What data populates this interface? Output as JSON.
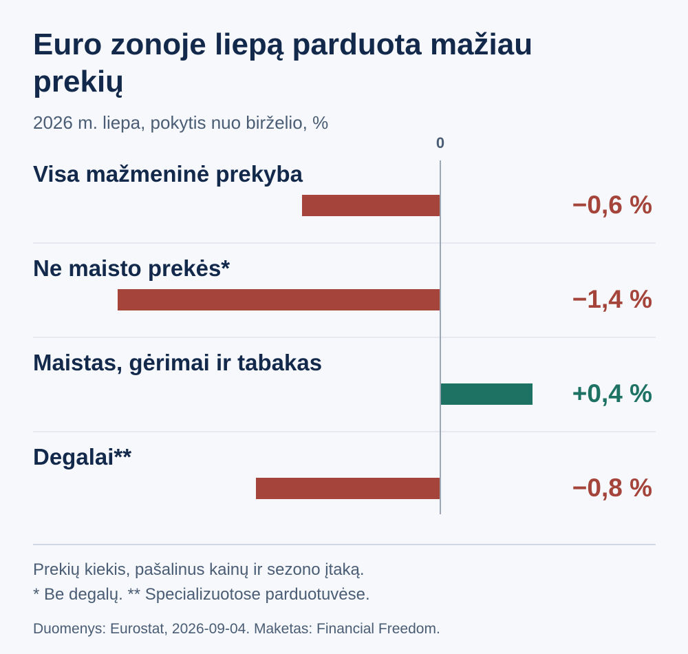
{
  "header": {
    "title": "Euro zonoje liepą parduota mažiau prekių",
    "subtitle": "2026 m. liepa, pokytis nuo birželio, %"
  },
  "chart_data": {
    "type": "bar",
    "orientation": "horizontal",
    "categories": [
      "Visa mažmeninė prekyba",
      "Ne maisto prekės*",
      "Maistas, gėrimai ir tabakas",
      "Degalai**"
    ],
    "values": [
      -0.6,
      -1.4,
      0.4,
      -0.8
    ],
    "value_labels": [
      "−0,6 %",
      "−1,4 %",
      "+0,4 %",
      "−0,8 %"
    ],
    "zero_label": "0",
    "xlim": [
      -1.4,
      0.4
    ],
    "colors": {
      "negative": "#a5443a",
      "positive": "#1d7264",
      "axis": "#9aa6b5",
      "separator": "#d7dde6",
      "text": "#13294b",
      "tick": "#4a5d75"
    },
    "grid": false,
    "legend": "none"
  },
  "footer": {
    "notes": [
      "Prekių kiekis, pašalinus kainų ir sezono įtaką.",
      "* Be degalų. ** Specializuotose parduotuvėse."
    ],
    "source": "Duomenys: Eurostat, 2026-09-04. Maketas: Financial Freedom."
  }
}
